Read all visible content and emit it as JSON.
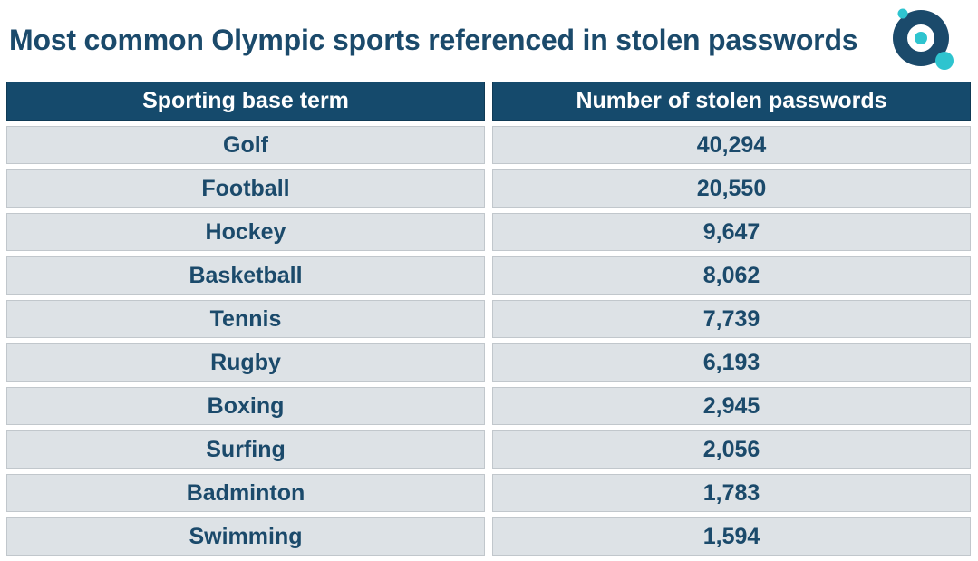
{
  "title": "Most common Olympic sports referenced in stolen passwords",
  "logo": {
    "icon": "target-circle-logo-icon",
    "colors": {
      "dark": "#1b4a6b",
      "accent": "#2ec4cf"
    }
  },
  "colors": {
    "header_bg": "#154a6c",
    "header_text": "#ffffff",
    "cell_bg": "#dde2e6",
    "cell_text": "#1b4a6b"
  },
  "chart_data": {
    "type": "table",
    "columns": [
      "Sporting base term",
      "Number of stolen passwords"
    ],
    "rows": [
      [
        "Golf",
        "40,294"
      ],
      [
        "Football",
        "20,550"
      ],
      [
        "Hockey",
        "9,647"
      ],
      [
        "Basketball",
        "8,062"
      ],
      [
        "Tennis",
        "7,739"
      ],
      [
        "Rugby",
        "6,193"
      ],
      [
        "Boxing",
        "2,945"
      ],
      [
        "Surfing",
        "2,056"
      ],
      [
        "Badminton",
        "1,783"
      ],
      [
        "Swimming",
        "1,594"
      ]
    ]
  }
}
